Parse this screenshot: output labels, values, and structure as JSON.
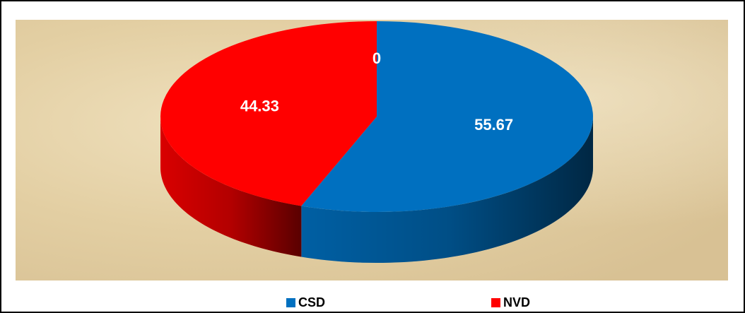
{
  "chart_data": {
    "type": "pie",
    "categories": [
      "CSD",
      "NVD",
      null
    ],
    "values": [
      55.67,
      44.33,
      0
    ],
    "colors": [
      "#0070c0",
      "#ff0000",
      null
    ],
    "legend": "bottom"
  }
}
